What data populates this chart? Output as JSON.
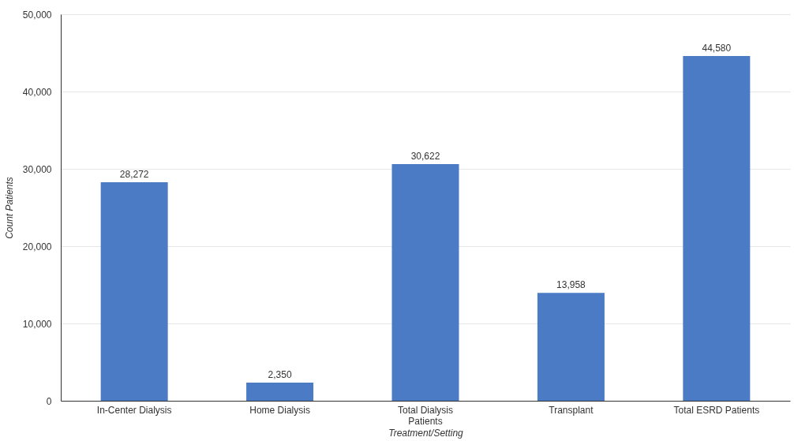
{
  "chart_data": {
    "type": "bar",
    "xlabel": "Treatment/Setting",
    "ylabel": "Count Patients",
    "categories": [
      "In-Center Dialysis",
      "Home Dialysis",
      "Total Dialysis Patients",
      "Transplant",
      "Total ESRD Patients"
    ],
    "values": [
      28272,
      2350,
      30622,
      13958,
      44580
    ],
    "value_labels": [
      "28,272",
      "2,350",
      "30,622",
      "13,958",
      "44,580"
    ],
    "color": "#4a7bc4",
    "ylim": [
      0,
      50000
    ],
    "yticks": [
      0,
      {
        "value": 10000,
        "label": "10,000"
      },
      {
        "value": 20000,
        "label": "20,000"
      },
      {
        "value": 30000,
        "label": "30,000"
      },
      {
        "value": 40000,
        "label": "40,000"
      },
      {
        "value": 50000,
        "label": "50,000"
      }
    ],
    "grid": "y"
  }
}
